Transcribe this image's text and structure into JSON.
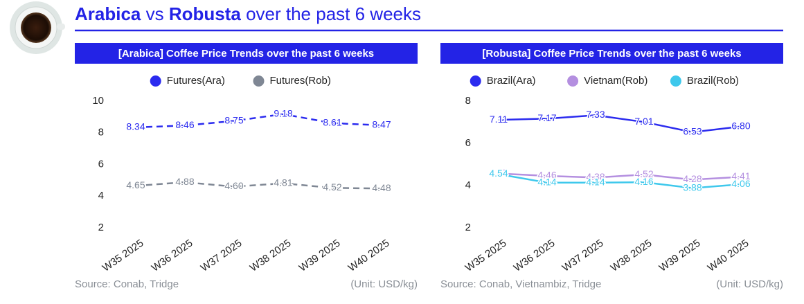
{
  "header": {
    "title": [
      {
        "text": "Arabica",
        "bold": true
      },
      {
        "text": " vs ",
        "bold": false
      },
      {
        "text": "Robusta",
        "bold": true
      },
      {
        "text": " over the past 6 weeks",
        "bold": false
      }
    ]
  },
  "chart_data": [
    {
      "type": "line",
      "title": "[Arabica] Coffee Price Trends over the past 6 weeks",
      "categories": [
        "W35 2025",
        "W36 2025",
        "W37 2025",
        "W38 2025",
        "W39 2025",
        "W40 2025"
      ],
      "series": [
        {
          "name": "Futures(Ara)",
          "color": "#2b2bef",
          "dashed": true,
          "values": [
            8.34,
            8.46,
            8.75,
            9.18,
            8.61,
            8.47
          ],
          "value_labels": [
            "8.34",
            "8.46",
            "8.75",
            "9.18",
            "8.61",
            "8.47"
          ]
        },
        {
          "name": "Futures(Rob)",
          "color": "#7f8794",
          "dashed": true,
          "values": [
            4.65,
            4.88,
            4.6,
            4.81,
            4.52,
            4.48
          ],
          "value_labels": [
            "4.65",
            "4.88",
            "4.60",
            "4.81",
            "4.52",
            "4.48"
          ]
        }
      ],
      "ylim": [
        2,
        10
      ],
      "yticks": [
        2,
        4,
        6,
        8,
        10
      ],
      "grid": false,
      "legend": "top",
      "source": "Source: Conab, Tridge",
      "unit": "(Unit: USD/kg)"
    },
    {
      "type": "line",
      "title": "[Robusta] Coffee Price Trends over the past 6 weeks",
      "categories": [
        "W35 2025",
        "W36 2025",
        "W37 2025",
        "W38 2025",
        "W39 2025",
        "W40 2025"
      ],
      "series": [
        {
          "name": "Brazil(Ara)",
          "color": "#2b2bef",
          "dashed": false,
          "values": [
            7.11,
            7.17,
            7.33,
            7.01,
            6.53,
            6.8
          ],
          "value_labels": [
            "7.11",
            "7.17",
            "7.33",
            "7.01",
            "6.53",
            "6.80"
          ]
        },
        {
          "name": "Vietnam(Rob)",
          "color": "#b48fe0",
          "dashed": false,
          "values": [
            4.57,
            4.46,
            4.38,
            4.52,
            4.28,
            4.41
          ],
          "value_labels": [
            "4.57",
            "4.46",
            "4.38",
            "4.52",
            "4.28",
            "4.41"
          ]
        },
        {
          "name": "Brazil(Rob)",
          "color": "#3ec8ec",
          "dashed": false,
          "values": [
            4.54,
            4.14,
            4.14,
            4.16,
            3.88,
            4.06
          ],
          "value_labels": [
            "4.54",
            "4.14",
            "4.14",
            "4.16",
            "3.88",
            "4.06"
          ]
        }
      ],
      "ylim": [
        2,
        8
      ],
      "yticks": [
        2,
        4,
        6,
        8
      ],
      "grid": false,
      "legend": "top",
      "source": "Source: Conab, Vietnambiz, Tridge",
      "unit": "(Unit: USD/kg)"
    }
  ]
}
